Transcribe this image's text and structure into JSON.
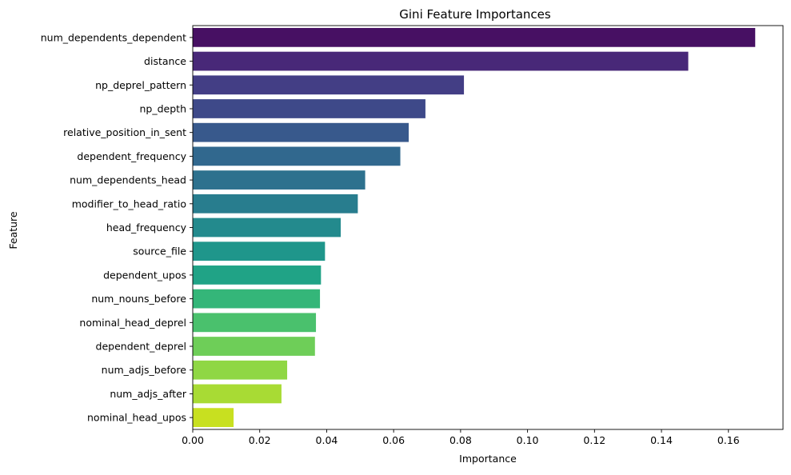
{
  "chart_data": {
    "type": "bar",
    "orientation": "horizontal",
    "title": "Gini Feature Importances",
    "xlabel": "Importance",
    "ylabel": "Feature",
    "xlim": [
      0,
      0.1763
    ],
    "xticks": [
      0.0,
      0.02,
      0.04,
      0.06,
      0.08,
      0.1,
      0.12,
      0.14,
      0.16
    ],
    "xtick_labels": [
      "0.00",
      "0.02",
      "0.04",
      "0.06",
      "0.08",
      "0.10",
      "0.12",
      "0.14",
      "0.16"
    ],
    "grid": false,
    "legend": "none",
    "colormap": "viridis",
    "categories": [
      "num_dependents_dependent",
      "distance",
      "np_deprel_pattern",
      "np_depth",
      "relative_position_in_sent",
      "dependent_frequency",
      "num_dependents_head",
      "modifier_to_head_ratio",
      "head_frequency",
      "source_file",
      "dependent_upos",
      "num_nouns_before",
      "nominal_head_deprel",
      "dependent_deprel",
      "num_adjs_before",
      "num_adjs_after",
      "nominal_head_upos"
    ],
    "values": [
      0.168,
      0.148,
      0.081,
      0.0695,
      0.0645,
      0.062,
      0.0515,
      0.0493,
      0.0442,
      0.0395,
      0.0383,
      0.038,
      0.0368,
      0.0365,
      0.0282,
      0.0265,
      0.0122
    ],
    "colors": [
      "#471063",
      "#482878",
      "#433e85",
      "#3e4989",
      "#38598c",
      "#31688e",
      "#2d718e",
      "#287d8e",
      "#238a8d",
      "#1f968b",
      "#20a386",
      "#34b679",
      "#4ac16d",
      "#6ece58",
      "#8fd744",
      "#a8db34",
      "#c8e020"
    ]
  }
}
